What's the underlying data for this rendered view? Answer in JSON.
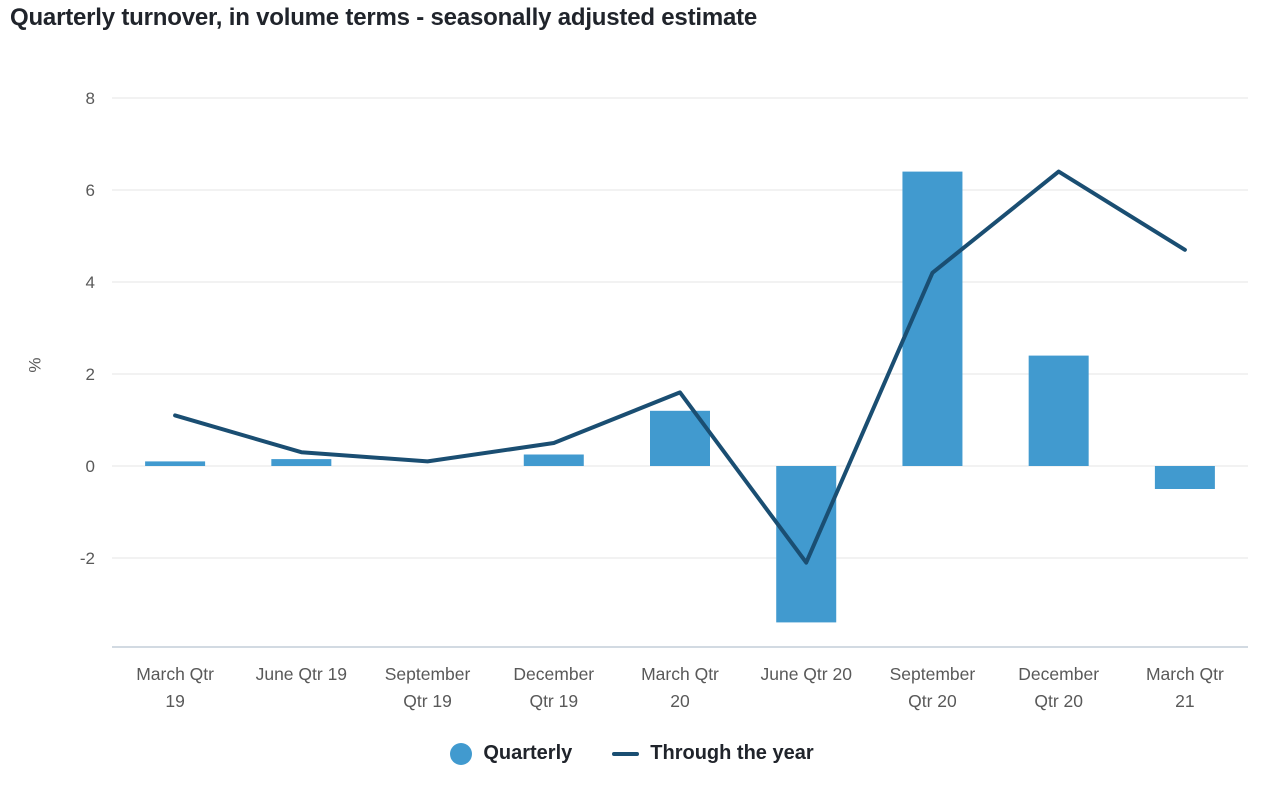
{
  "title": "Quarterly turnover, in volume terms - seasonally adjusted estimate",
  "chart_data": {
    "type": "combo-bar-line",
    "title": "Quarterly turnover, in volume terms - seasonally adjusted estimate",
    "categories": [
      "March Qtr 19",
      "June Qtr 19",
      "September Qtr 19",
      "December Qtr 19",
      "March Qtr 20",
      "June Qtr 20",
      "September Qtr 20",
      "December Qtr 20",
      "March Qtr 21"
    ],
    "category_label_lines": [
      [
        "March Qtr",
        "19"
      ],
      [
        "June Qtr 19"
      ],
      [
        "September",
        "Qtr 19"
      ],
      [
        "December",
        "Qtr 19"
      ],
      [
        "March Qtr",
        "20"
      ],
      [
        "June Qtr 20"
      ],
      [
        "September",
        "Qtr 20"
      ],
      [
        "December",
        "Qtr 20"
      ],
      [
        "March Qtr",
        "21"
      ]
    ],
    "series": [
      {
        "name": "Quarterly",
        "type": "bar",
        "color": "#419acf",
        "values": [
          0.1,
          0.15,
          0,
          0.25,
          1.2,
          -3.4,
          6.4,
          2.4,
          -0.5
        ]
      },
      {
        "name": "Through the year",
        "type": "line",
        "color": "#1a4e72",
        "values": [
          1.1,
          0.3,
          0.1,
          0.5,
          1.6,
          -2.1,
          4.2,
          6.4,
          4.7
        ]
      }
    ],
    "xlabel": "",
    "ylabel": "%",
    "yticks": [
      8,
      6,
      4,
      2,
      0,
      -2
    ],
    "ylim": [
      -3.9,
      8.3
    ],
    "grid": true,
    "legend_position": "bottom-center"
  },
  "colors": {
    "bar": "#419acf",
    "line": "#1a4e72",
    "gridline": "#e6e6e6",
    "axis_line": "#c3ced8",
    "tick_text": "#595959",
    "title_text": "#20242b"
  }
}
